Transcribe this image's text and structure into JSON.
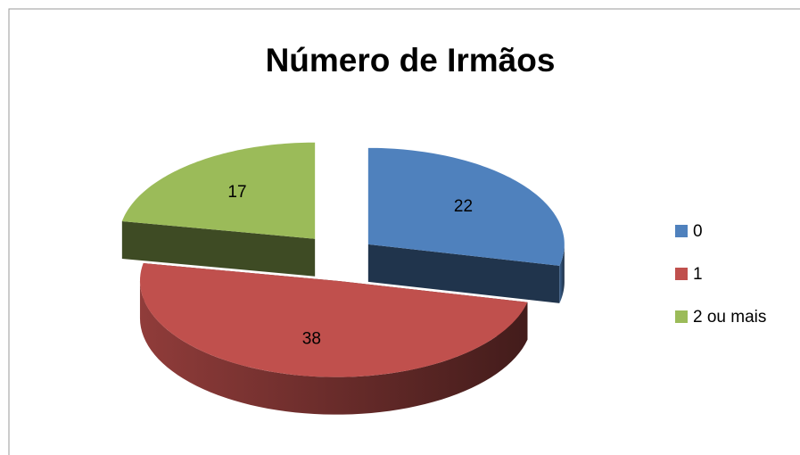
{
  "chart_data": {
    "type": "pie",
    "title": "Número de Irmãos",
    "categories": [
      "0",
      "1",
      "2 ou mais"
    ],
    "values": [
      22,
      38,
      17
    ],
    "colors": [
      "#4f81bd",
      "#c0504d",
      "#9bbb59"
    ],
    "legend": "right"
  }
}
